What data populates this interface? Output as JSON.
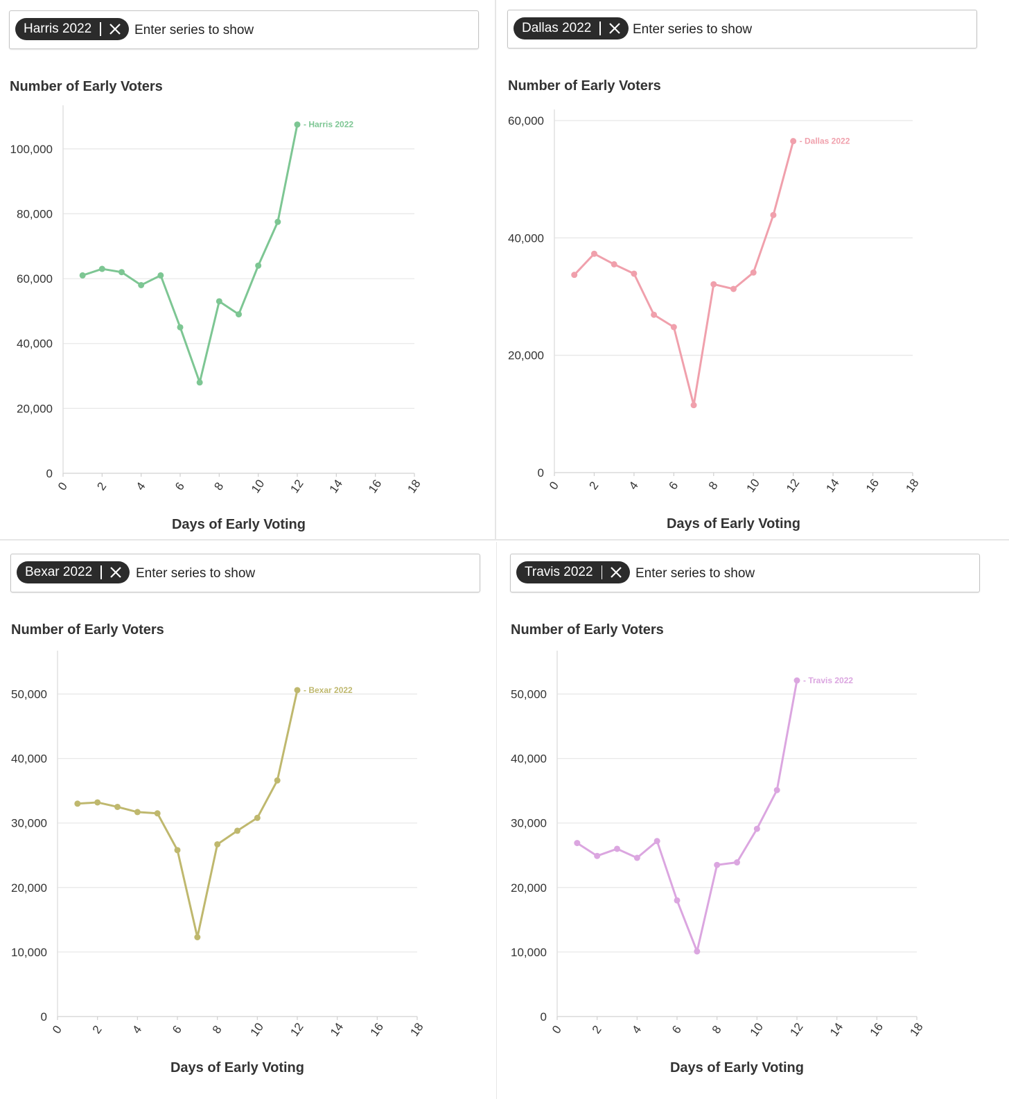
{
  "charts": [
    {
      "chip_label": "Harris 2022",
      "placeholder": "Enter series to show",
      "color": "#7dc693",
      "chart_data": {
        "type": "line",
        "title": "Number of Early Voters",
        "xlabel": "Days of Early Voting",
        "ylabel": "",
        "xlim": [
          0,
          18
        ],
        "ylim": [
          0,
          110000
        ],
        "xticks": [
          0,
          2,
          4,
          6,
          8,
          10,
          12,
          14,
          16,
          18
        ],
        "yticks": [
          0,
          20000,
          40000,
          60000,
          80000,
          100000
        ],
        "ytick_labels": [
          "0",
          "20,000",
          "40,000",
          "60,000",
          "80,000",
          "100,000"
        ],
        "series": [
          {
            "name": "Harris 2022",
            "x": [
              1,
              2,
              3,
              4,
              5,
              6,
              7,
              8,
              9,
              10,
              11,
              12
            ],
            "y": [
              61000,
              63000,
              62000,
              58000,
              61000,
              45000,
              28000,
              53000,
              49000,
              64000,
              77500,
              107500
            ]
          }
        ]
      }
    },
    {
      "chip_label": "Dallas 2022",
      "placeholder": "Enter series to show",
      "color": "#f0a0ac",
      "chart_data": {
        "type": "line",
        "title": "Number of Early Voters",
        "xlabel": "Days of Early Voting",
        "ylabel": "",
        "xlim": [
          0,
          18
        ],
        "ylim": [
          0,
          60000
        ],
        "xticks": [
          0,
          2,
          4,
          6,
          8,
          10,
          12,
          14,
          16,
          18
        ],
        "yticks": [
          0,
          20000,
          40000,
          60000
        ],
        "ytick_labels": [
          "0",
          "20,000",
          "40,000",
          "60,000"
        ],
        "series": [
          {
            "name": "Dallas 2022",
            "x": [
              1,
              2,
              3,
              4,
              5,
              6,
              7,
              8,
              9,
              10,
              11,
              12
            ],
            "y": [
              33700,
              37300,
              35500,
              33900,
              26900,
              24800,
              11500,
              32100,
              31300,
              34100,
              43900,
              56500
            ]
          }
        ]
      }
    },
    {
      "chip_label": "Bexar 2022",
      "placeholder": "Enter series to show",
      "color": "#bfb86e",
      "chart_data": {
        "type": "line",
        "title": "Number of Early Voters",
        "xlabel": "Days of Early Voting",
        "ylabel": "",
        "xlim": [
          0,
          18
        ],
        "ylim": [
          0,
          55000
        ],
        "xticks": [
          0,
          2,
          4,
          6,
          8,
          10,
          12,
          14,
          16,
          18
        ],
        "yticks": [
          0,
          10000,
          20000,
          30000,
          40000,
          50000
        ],
        "ytick_labels": [
          "0",
          "10,000",
          "20,000",
          "30,000",
          "40,000",
          "50,000"
        ],
        "series": [
          {
            "name": "Bexar 2022",
            "x": [
              1,
              2,
              3,
              4,
              5,
              6,
              7,
              8,
              9,
              10,
              11,
              12
            ],
            "y": [
              33000,
              33200,
              32500,
              31700,
              31500,
              25800,
              12300,
              26700,
              28800,
              30800,
              36600,
              50600
            ]
          }
        ]
      }
    },
    {
      "chip_label": "Travis 2022",
      "placeholder": "Enter series to show",
      "color": "#dba6e0",
      "chart_data": {
        "type": "line",
        "title": "Number of Early Voters",
        "xlabel": "Days of Early Voting",
        "ylabel": "",
        "xlim": [
          0,
          18
        ],
        "ylim": [
          0,
          55000
        ],
        "xticks": [
          0,
          2,
          4,
          6,
          8,
          10,
          12,
          14,
          16,
          18
        ],
        "yticks": [
          0,
          10000,
          20000,
          30000,
          40000,
          50000
        ],
        "ytick_labels": [
          "0",
          "10,000",
          "20,000",
          "30,000",
          "40,000",
          "50,000"
        ],
        "series": [
          {
            "name": "Travis 2022",
            "x": [
              1,
              2,
              3,
              4,
              5,
              6,
              7,
              8,
              9,
              10,
              11,
              12
            ],
            "y": [
              26900,
              24900,
              26000,
              24600,
              27200,
              18000,
              10100,
              23500,
              23900,
              29100,
              35100,
              52100
            ]
          }
        ]
      }
    }
  ]
}
